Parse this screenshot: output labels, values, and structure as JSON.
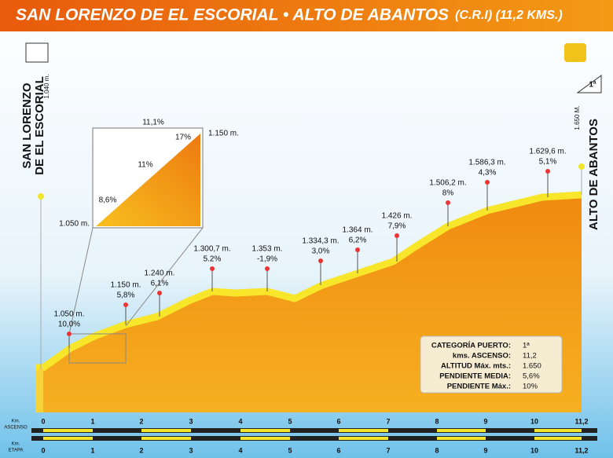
{
  "header": {
    "title": "SAN LORENZO DE EL ESCORIAL • ALTO DE ABANTOS",
    "subtitle": "(C.R.I) (11,2 KMS.)"
  },
  "start": {
    "name_lines": [
      "SAN LORENZO",
      "DE EL ESCORIAL"
    ],
    "altitude": "1.040 m."
  },
  "finish": {
    "name": "ALTO DE ABANTOS",
    "altitude": "1.650 M."
  },
  "category_badge": "1ª",
  "waypoints": [
    {
      "altitude": "1.050 m.",
      "grade": "10,0%"
    },
    {
      "altitude": "1.150 m.",
      "grade": "5,8%"
    },
    {
      "altitude": "1.240 m.",
      "grade": "6,1%"
    },
    {
      "altitude": "1.300,7 m.",
      "grade": "5.2%"
    },
    {
      "altitude": "1.353 m.",
      "grade": "-1,9%"
    },
    {
      "altitude": "1.334,3 m.",
      "grade": "3,0%"
    },
    {
      "altitude": "1.364 m.",
      "grade": "6,2%"
    },
    {
      "altitude": "1.426 m.",
      "grade": "7,9%"
    },
    {
      "altitude": "1.506,2 m.",
      "grade": "8%"
    },
    {
      "altitude": "1.586,3 m.",
      "grade": "4,3%"
    },
    {
      "altitude": "1.629,6 m.",
      "grade": "5,1%"
    }
  ],
  "inset": {
    "top": "11,1%",
    "grades": [
      "17%",
      "11%",
      "8,6%"
    ],
    "start": "1.050 m.",
    "end": "1.150 m."
  },
  "info": [
    [
      "CATEGORÍA PUERTO:",
      "1ª"
    ],
    [
      "kms. ASCENSO:",
      "11,2"
    ],
    [
      "ALTITUD Máx. mts.:",
      "1.650"
    ],
    [
      "PENDIENTE MEDIA:",
      "5,6%"
    ],
    [
      "PENDIENTE Máx.:",
      "10%"
    ]
  ],
  "scales": {
    "ascent_label": [
      "Km.",
      "ASCENSO"
    ],
    "ascent_ticks": [
      "0",
      "1",
      "2",
      "3",
      "4",
      "5",
      "6",
      "7",
      "8",
      "9",
      "10",
      "11,2"
    ],
    "stage_label": [
      "Km.",
      "ETAPA"
    ],
    "stage_ticks": [
      "0",
      "1",
      "2",
      "3",
      "4",
      "5",
      "6",
      "7",
      "8",
      "9",
      "10",
      "11,2"
    ]
  }
}
